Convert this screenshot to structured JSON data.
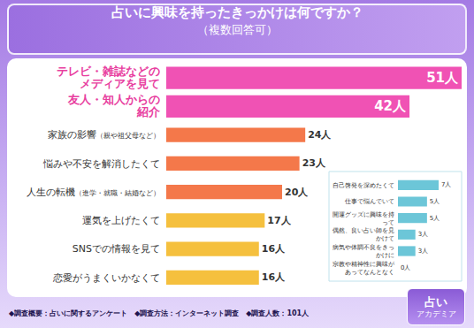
{
  "chart_data": [
    {
      "type": "bar",
      "orientation": "horizontal",
      "title": "占いに興味を持ったきっかけは何ですか？",
      "subtitle": "（複数回答可）",
      "categories": [
        "テレビ・雑誌などのメディアを見て",
        "友人・知人からの紹介",
        "家族の影響（親や祖父母など）",
        "悩みや不安を解消したくて",
        "人生の転機（進学・就職・結婚など）",
        "運気を上げたくて",
        "SNSでの情報を見て",
        "恋愛がうまくいかなくて"
      ],
      "values": [
        51,
        42,
        24,
        23,
        20,
        17,
        16,
        16
      ],
      "value_labels": [
        "51人",
        "42人",
        "24人",
        "23人",
        "20人",
        "17人",
        "16人",
        "16人"
      ],
      "colors": [
        "#f052b4",
        "#f052b4",
        "#f4784a",
        "#f4784a",
        "#f4784a",
        "#f5c03e",
        "#f5c03e",
        "#f5c03e"
      ],
      "xlim": [
        0,
        51
      ],
      "data_labels": true,
      "tick_labels": "y",
      "grid": false
    },
    {
      "type": "bar",
      "orientation": "horizontal",
      "categories": [
        "自己啓発を深めたくて",
        "仕事で悩んでいて",
        "開運グッズに興味を持って",
        "偶然、良い占い師を見かけて",
        "病気や体調不良をきっかけに",
        "宗教や精神性に興味があってなんとなく"
      ],
      "values": [
        7,
        5,
        5,
        3,
        3,
        0
      ],
      "value_labels": [
        "7人",
        "5人",
        "5人",
        "3人",
        "3人",
        "0人"
      ],
      "color": "#6cc6d8",
      "xlim": [
        0,
        7
      ],
      "data_labels": true,
      "tick_labels": "y",
      "grid": false
    }
  ],
  "footer": [
    "◆調査概要：占いに関するアンケート",
    "◆調査方法：インターネット調査",
    "◆調査人数：101人"
  ],
  "logo": [
    "占い",
    "アカデミア"
  ]
}
